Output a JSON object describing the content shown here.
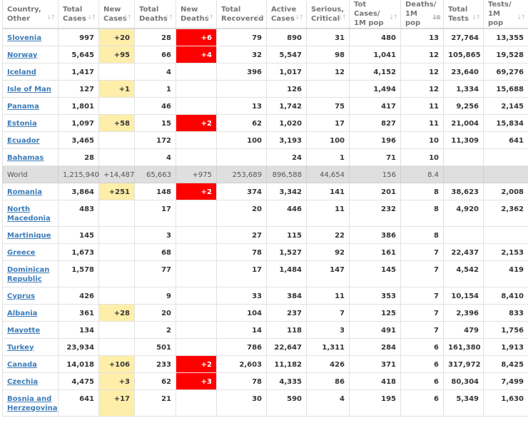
{
  "table": {
    "headers": [
      {
        "line1": "Country,",
        "line2": "Other",
        "sort_icon": "sort-icon"
      },
      {
        "line1": "Total",
        "line2": "Cases",
        "sort_icon": "sort-icon"
      },
      {
        "line1": "New",
        "line2": "Cases",
        "sort_icon": "sort-icon"
      },
      {
        "line1": "Total",
        "line2": "Deaths",
        "sort_icon": "sort-icon"
      },
      {
        "line1": "New",
        "line2": "Deaths",
        "sort_icon": "sort-icon"
      },
      {
        "line1": "Total",
        "line2": "Recovered",
        "sort_icon": "sort-icon"
      },
      {
        "line1": "Active",
        "line2": "Cases",
        "sort_icon": "sort-icon"
      },
      {
        "line1": "Serious,",
        "line2": "Critical",
        "sort_icon": "sort-icon"
      },
      {
        "line1": "Tot Cases/",
        "line2": "1M pop",
        "sort_icon": "sort-icon"
      },
      {
        "line1": "Deaths/",
        "line2": "1M pop",
        "sort_icon": "sort-desc-active-icon"
      },
      {
        "line1": "Total",
        "line2": "Tests",
        "sort_icon": "sort-icon"
      },
      {
        "line1": "Tests/",
        "line2": "1M pop",
        "sort_icon": "sort-icon"
      }
    ],
    "rows": [
      {
        "country": "Slovenia",
        "total_cases": "997",
        "new_cases": "+20",
        "total_deaths": "28",
        "new_deaths": "+6",
        "total_recovered": "79",
        "active_cases": "890",
        "serious_critical": "31",
        "cases_per_1m": "480",
        "deaths_per_1m": "13",
        "total_tests": "27,764",
        "tests_per_1m": "13,355"
      },
      {
        "country": "Norway",
        "total_cases": "5,645",
        "new_cases": "+95",
        "total_deaths": "66",
        "new_deaths": "+4",
        "total_recovered": "32",
        "active_cases": "5,547",
        "serious_critical": "98",
        "cases_per_1m": "1,041",
        "deaths_per_1m": "12",
        "total_tests": "105,865",
        "tests_per_1m": "19,528"
      },
      {
        "country": "Iceland",
        "total_cases": "1,417",
        "new_cases": "",
        "total_deaths": "4",
        "new_deaths": "",
        "total_recovered": "396",
        "active_cases": "1,017",
        "serious_critical": "12",
        "cases_per_1m": "4,152",
        "deaths_per_1m": "12",
        "total_tests": "23,640",
        "tests_per_1m": "69,276"
      },
      {
        "country": "Isle of Man",
        "total_cases": "127",
        "new_cases": "+1",
        "total_deaths": "1",
        "new_deaths": "",
        "total_recovered": "",
        "active_cases": "126",
        "serious_critical": "",
        "cases_per_1m": "1,494",
        "deaths_per_1m": "12",
        "total_tests": "1,334",
        "tests_per_1m": "15,688"
      },
      {
        "country": "Panama",
        "total_cases": "1,801",
        "new_cases": "",
        "total_deaths": "46",
        "new_deaths": "",
        "total_recovered": "13",
        "active_cases": "1,742",
        "serious_critical": "75",
        "cases_per_1m": "417",
        "deaths_per_1m": "11",
        "total_tests": "9,256",
        "tests_per_1m": "2,145"
      },
      {
        "country": "Estonia",
        "total_cases": "1,097",
        "new_cases": "+58",
        "total_deaths": "15",
        "new_deaths": "+2",
        "total_recovered": "62",
        "active_cases": "1,020",
        "serious_critical": "17",
        "cases_per_1m": "827",
        "deaths_per_1m": "11",
        "total_tests": "21,004",
        "tests_per_1m": "15,834"
      },
      {
        "country": "Ecuador",
        "total_cases": "3,465",
        "new_cases": "",
        "total_deaths": "172",
        "new_deaths": "",
        "total_recovered": "100",
        "active_cases": "3,193",
        "serious_critical": "100",
        "cases_per_1m": "196",
        "deaths_per_1m": "10",
        "total_tests": "11,309",
        "tests_per_1m": "641"
      },
      {
        "country": "Bahamas",
        "total_cases": "28",
        "new_cases": "",
        "total_deaths": "4",
        "new_deaths": "",
        "total_recovered": "",
        "active_cases": "24",
        "serious_critical": "1",
        "cases_per_1m": "71",
        "deaths_per_1m": "10",
        "total_tests": "",
        "tests_per_1m": ""
      },
      {
        "country": "World",
        "total_cases": "1,215,940",
        "new_cases": "+14,487",
        "total_deaths": "65,663",
        "new_deaths": "+975",
        "total_recovered": "253,689",
        "active_cases": "896,588",
        "serious_critical": "44,654",
        "cases_per_1m": "156",
        "deaths_per_1m": "8.4",
        "total_tests": "",
        "tests_per_1m": ""
      },
      {
        "country": "Romania",
        "total_cases": "3,864",
        "new_cases": "+251",
        "total_deaths": "148",
        "new_deaths": "+2",
        "total_recovered": "374",
        "active_cases": "3,342",
        "serious_critical": "141",
        "cases_per_1m": "201",
        "deaths_per_1m": "8",
        "total_tests": "38,623",
        "tests_per_1m": "2,008"
      },
      {
        "country": "North Macedonia",
        "total_cases": "483",
        "new_cases": "",
        "total_deaths": "17",
        "new_deaths": "",
        "total_recovered": "20",
        "active_cases": "446",
        "serious_critical": "11",
        "cases_per_1m": "232",
        "deaths_per_1m": "8",
        "total_tests": "4,920",
        "tests_per_1m": "2,362"
      },
      {
        "country": "Martinique",
        "total_cases": "145",
        "new_cases": "",
        "total_deaths": "3",
        "new_deaths": "",
        "total_recovered": "27",
        "active_cases": "115",
        "serious_critical": "22",
        "cases_per_1m": "386",
        "deaths_per_1m": "8",
        "total_tests": "",
        "tests_per_1m": ""
      },
      {
        "country": "Greece",
        "total_cases": "1,673",
        "new_cases": "",
        "total_deaths": "68",
        "new_deaths": "",
        "total_recovered": "78",
        "active_cases": "1,527",
        "serious_critical": "92",
        "cases_per_1m": "161",
        "deaths_per_1m": "7",
        "total_tests": "22,437",
        "tests_per_1m": "2,153"
      },
      {
        "country": "Dominican Republic",
        "total_cases": "1,578",
        "new_cases": "",
        "total_deaths": "77",
        "new_deaths": "",
        "total_recovered": "17",
        "active_cases": "1,484",
        "serious_critical": "147",
        "cases_per_1m": "145",
        "deaths_per_1m": "7",
        "total_tests": "4,542",
        "tests_per_1m": "419"
      },
      {
        "country": "Cyprus",
        "total_cases": "426",
        "new_cases": "",
        "total_deaths": "9",
        "new_deaths": "",
        "total_recovered": "33",
        "active_cases": "384",
        "serious_critical": "11",
        "cases_per_1m": "353",
        "deaths_per_1m": "7",
        "total_tests": "10,154",
        "tests_per_1m": "8,410"
      },
      {
        "country": "Albania",
        "total_cases": "361",
        "new_cases": "+28",
        "total_deaths": "20",
        "new_deaths": "",
        "total_recovered": "104",
        "active_cases": "237",
        "serious_critical": "7",
        "cases_per_1m": "125",
        "deaths_per_1m": "7",
        "total_tests": "2,396",
        "tests_per_1m": "833"
      },
      {
        "country": "Mayotte",
        "total_cases": "134",
        "new_cases": "",
        "total_deaths": "2",
        "new_deaths": "",
        "total_recovered": "14",
        "active_cases": "118",
        "serious_critical": "3",
        "cases_per_1m": "491",
        "deaths_per_1m": "7",
        "total_tests": "479",
        "tests_per_1m": "1,756"
      },
      {
        "country": "Turkey",
        "total_cases": "23,934",
        "new_cases": "",
        "total_deaths": "501",
        "new_deaths": "",
        "total_recovered": "786",
        "active_cases": "22,647",
        "serious_critical": "1,311",
        "cases_per_1m": "284",
        "deaths_per_1m": "6",
        "total_tests": "161,380",
        "tests_per_1m": "1,913"
      },
      {
        "country": "Canada",
        "total_cases": "14,018",
        "new_cases": "+106",
        "total_deaths": "233",
        "new_deaths": "+2",
        "total_recovered": "2,603",
        "active_cases": "11,182",
        "serious_critical": "426",
        "cases_per_1m": "371",
        "deaths_per_1m": "6",
        "total_tests": "317,972",
        "tests_per_1m": "8,425"
      },
      {
        "country": "Czechia",
        "total_cases": "4,475",
        "new_cases": "+3",
        "total_deaths": "62",
        "new_deaths": "+3",
        "total_recovered": "78",
        "active_cases": "4,335",
        "serious_critical": "86",
        "cases_per_1m": "418",
        "deaths_per_1m": "6",
        "total_tests": "80,304",
        "tests_per_1m": "7,499"
      },
      {
        "country": "Bosnia and Herzegovina",
        "total_cases": "641",
        "new_cases": "+17",
        "total_deaths": "21",
        "new_deaths": "",
        "total_recovered": "30",
        "active_cases": "590",
        "serious_critical": "4",
        "cases_per_1m": "195",
        "deaths_per_1m": "6",
        "total_tests": "5,349",
        "tests_per_1m": "1,630"
      }
    ],
    "sort": {
      "column": "Deaths/ 1M pop",
      "direction": "descending"
    }
  },
  "colors": {
    "link": "#3d7cb8",
    "new_cases_highlight": "#ffeeaa",
    "new_deaths_highlight": "#ff0000",
    "world_row_bg": "#dfdfdf",
    "header_text": "#777777",
    "cell_text": "#363636"
  }
}
